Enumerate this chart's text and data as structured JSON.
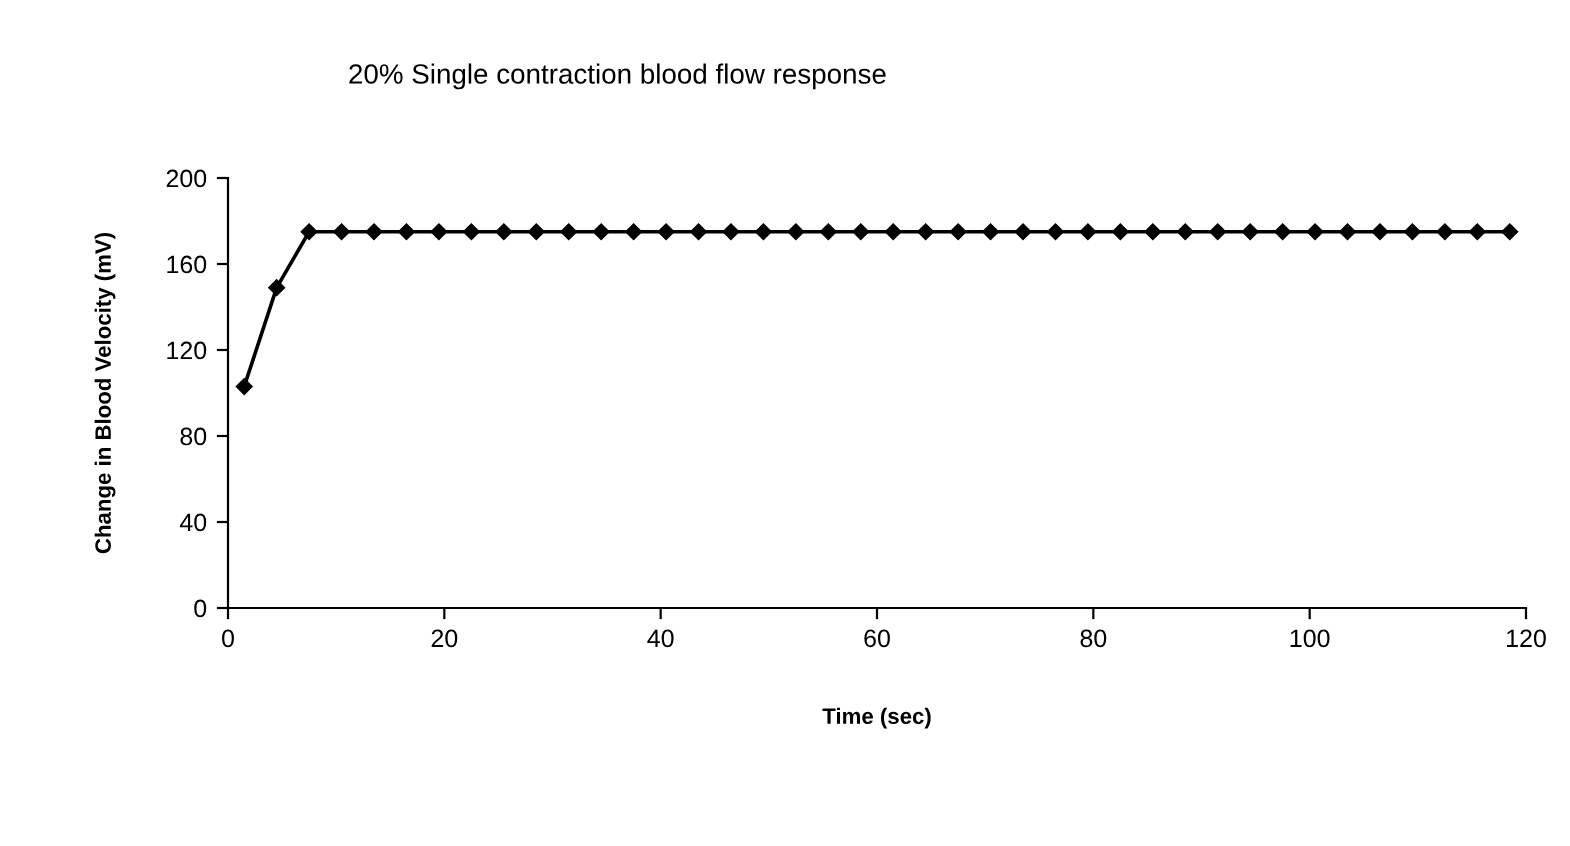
{
  "chart_data": {
    "type": "line",
    "title": "20% Single contraction blood flow response",
    "xlabel": "Time (sec)",
    "ylabel": "Change in Blood Velocity (mV)",
    "x": [
      1.5,
      4.5,
      7.5,
      10.5,
      13.5,
      16.5,
      19.5,
      22.5,
      25.5,
      28.5,
      31.5,
      34.5,
      37.5,
      40.5,
      43.5,
      46.5,
      49.5,
      52.5,
      55.5,
      58.5,
      61.5,
      64.5,
      67.5,
      70.5,
      73.5,
      76.5,
      79.5,
      82.5,
      85.5,
      88.5,
      91.5,
      94.5,
      97.5,
      100.5,
      103.5,
      106.5,
      109.5,
      112.5,
      115.5,
      118.5
    ],
    "series": [
      {
        "color": "#000000",
        "values": [
          103,
          149,
          175,
          175,
          175,
          175,
          175,
          175,
          175,
          175,
          175,
          175,
          175,
          175,
          175,
          175,
          175,
          175,
          175,
          175,
          175,
          175,
          175,
          175,
          175,
          175,
          175,
          175,
          175,
          175,
          175,
          175,
          175,
          175,
          175,
          175,
          175,
          175,
          175,
          175
        ]
      }
    ],
    "xlim": [
      0,
      120
    ],
    "xticks": [
      0,
      20,
      40,
      60,
      80,
      100,
      120
    ],
    "ylim": [
      0,
      200
    ],
    "yticks": [
      0,
      40,
      80,
      120,
      160,
      200
    ],
    "marker": "diamond",
    "line_style": "solid",
    "grid": false,
    "legend": false
  }
}
